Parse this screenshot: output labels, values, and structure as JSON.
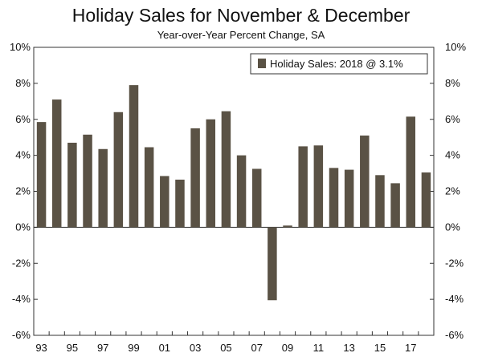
{
  "chart_data": {
    "type": "bar",
    "title": "Holiday Sales for November & December",
    "subtitle": "Year-over-Year Percent Change, SA",
    "xlabel": "",
    "ylabel": "",
    "ylim": [
      -6,
      10
    ],
    "yticks": [
      -6,
      -4,
      -2,
      0,
      2,
      4,
      6,
      8,
      10
    ],
    "ytick_labels": [
      "-6%",
      "-4%",
      "-2%",
      "0%",
      "2%",
      "4%",
      "6%",
      "8%",
      "10%"
    ],
    "categories": [
      "1993",
      "1994",
      "1995",
      "1996",
      "1997",
      "1998",
      "1999",
      "2000",
      "2001",
      "2002",
      "2003",
      "2004",
      "2005",
      "2006",
      "2007",
      "2008",
      "2009",
      "2010",
      "2011",
      "2012",
      "2013",
      "2014",
      "2015",
      "2016",
      "2017",
      "2018"
    ],
    "values": [
      5.85,
      7.1,
      4.7,
      5.15,
      4.35,
      6.4,
      7.9,
      4.45,
      2.85,
      2.65,
      5.5,
      6.0,
      6.45,
      4.0,
      3.25,
      -4.05,
      0.1,
      4.5,
      4.55,
      3.3,
      3.2,
      5.1,
      2.9,
      2.45,
      6.15,
      3.05
    ],
    "xtick_labels": [
      "93",
      "95",
      "97",
      "99",
      "01",
      "03",
      "05",
      "07",
      "09",
      "11",
      "13",
      "15",
      "17"
    ],
    "xtick_every": 2,
    "series": [
      {
        "name": "Holiday Sales: 2018 @ 3.1%",
        "color": "#5a5245"
      }
    ],
    "legend_position": "top-right",
    "grid": false
  }
}
